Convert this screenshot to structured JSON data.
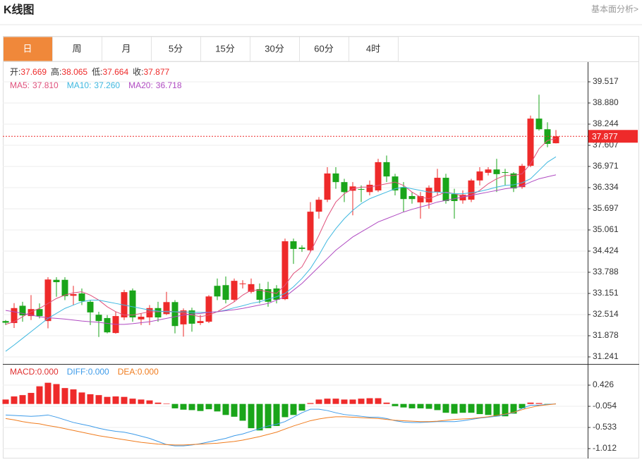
{
  "header": {
    "title": "K线图",
    "link": "基本面分析>"
  },
  "tabs": [
    "日",
    "周",
    "月",
    "5分",
    "15分",
    "30分",
    "60分",
    "4时"
  ],
  "active_tab": 0,
  "chart_data": [
    {
      "type": "candlestick",
      "up_color": "#ee2a2a",
      "down_color": "#1aa51a",
      "grid": true,
      "info_labels": [
        "开:",
        "高:",
        "低:",
        "收:"
      ],
      "open": [
        32.32,
        32.26,
        32.78,
        32.47,
        32.68,
        32.32,
        33.56,
        33.56,
        33.08,
        33.15,
        32.9,
        32.51,
        32.41,
        31.96,
        32.43,
        33.24,
        32.37,
        32.43,
        32.71,
        32.53,
        32.89,
        32.22,
        32.64,
        32.26,
        32.3,
        33.38,
        33.4,
        32.96,
        33.43,
        33.2,
        33.28,
        33.28,
        33.3,
        32.98,
        34.72,
        34.53,
        34.45,
        35.61,
        35.97,
        36.76,
        36.5,
        36.24,
        36.29,
        36.2,
        36.25,
        37.1,
        36.67,
        36.35,
        36.08,
        35.89,
        35.89,
        36.2,
        36.63,
        36.14,
        35.95,
        35.97,
        36.55,
        36.78,
        36.88,
        36.8,
        36.76,
        36.35,
        36.99,
        38.41,
        38.09,
        37.669
      ],
      "high": [
        32.35,
        32.86,
        32.9,
        33.1,
        32.85,
        33.64,
        33.64,
        33.64,
        33.38,
        33.3,
        32.95,
        32.6,
        32.5,
        32.6,
        33.26,
        33.3,
        32.55,
        32.8,
        32.9,
        33.2,
        32.95,
        32.7,
        32.72,
        32.5,
        33.1,
        33.6,
        33.66,
        33.6,
        33.55,
        33.6,
        33.45,
        33.5,
        33.4,
        34.8,
        34.8,
        34.6,
        35.9,
        36.05,
        36.95,
        36.95,
        36.6,
        36.5,
        36.4,
        36.55,
        37.2,
        37.3,
        36.75,
        36.5,
        36.2,
        36.2,
        36.4,
        36.9,
        36.75,
        36.3,
        36.25,
        36.6,
        36.95,
        36.95,
        37.2,
        36.9,
        36.8,
        37.05,
        38.5,
        39.13,
        38.3,
        38.065
      ],
      "low": [
        32.2,
        32.11,
        32.3,
        32.35,
        32.4,
        32.1,
        33.05,
        32.95,
        32.8,
        32.8,
        32.2,
        31.84,
        31.95,
        31.94,
        32.35,
        32.3,
        32.2,
        32.2,
        32.3,
        32.5,
        31.95,
        31.85,
        32.0,
        32.2,
        32.26,
        32.95,
        32.85,
        32.9,
        33.3,
        33.15,
        32.85,
        32.75,
        32.85,
        32.95,
        34.04,
        34.4,
        34.4,
        35.4,
        35.9,
        36.3,
        35.9,
        35.5,
        35.9,
        36.1,
        36.2,
        36.5,
        36.1,
        35.6,
        35.85,
        35.4,
        35.7,
        36.1,
        35.85,
        35.4,
        35.85,
        35.9,
        36.4,
        36.7,
        36.2,
        36.4,
        36.2,
        36.3,
        36.95,
        38.05,
        37.55,
        37.664
      ],
      "close": [
        32.27,
        32.71,
        32.49,
        32.68,
        32.47,
        33.57,
        33.49,
        33.07,
        33.13,
        32.92,
        32.58,
        32.32,
        31.98,
        32.47,
        33.19,
        32.43,
        32.45,
        32.71,
        32.43,
        32.89,
        32.17,
        32.64,
        32.24,
        32.32,
        33.06,
        33.06,
        32.96,
        33.53,
        33.45,
        33.43,
        32.96,
        32.9,
        32.96,
        34.72,
        34.49,
        34.49,
        35.61,
        35.97,
        36.76,
        36.5,
        36.2,
        36.37,
        36.28,
        36.42,
        37.1,
        36.67,
        36.25,
        35.99,
        35.99,
        36.08,
        36.33,
        36.63,
        35.93,
        35.93,
        36.12,
        36.55,
        36.82,
        36.88,
        36.74,
        36.78,
        36.31,
        36.99,
        38.41,
        38.09,
        37.65,
        37.877
      ],
      "series": [
        {
          "name": "MA5:",
          "label": "37.810",
          "color": "#e0517c",
          "values": [
            32.22,
            32.3,
            32.45,
            32.6,
            32.7,
            32.85,
            33.0,
            33.1,
            33.17,
            33.2,
            33.1,
            32.95,
            32.75,
            32.6,
            32.5,
            32.5,
            32.55,
            32.6,
            32.6,
            32.62,
            32.6,
            32.55,
            32.5,
            32.45,
            32.5,
            32.6,
            32.75,
            32.9,
            33.1,
            33.25,
            33.25,
            33.2,
            33.15,
            33.4,
            33.75,
            33.95,
            34.4,
            34.9,
            35.45,
            35.9,
            36.15,
            36.3,
            36.35,
            36.35,
            36.4,
            36.45,
            36.5,
            36.4,
            36.2,
            36.05,
            36.0,
            36.1,
            36.2,
            36.15,
            36.08,
            36.1,
            36.25,
            36.45,
            36.6,
            36.7,
            36.7,
            36.75,
            37.05,
            37.5,
            37.75,
            37.81
          ]
        },
        {
          "name": "MA10:",
          "label": "37.260",
          "color": "#3fb8e0",
          "values": [
            31.41,
            31.6,
            31.8,
            32.0,
            32.2,
            32.4,
            32.55,
            32.7,
            32.8,
            32.9,
            32.95,
            32.95,
            32.9,
            32.85,
            32.8,
            32.75,
            32.7,
            32.65,
            32.62,
            32.6,
            32.6,
            32.6,
            32.58,
            32.58,
            32.58,
            32.6,
            32.65,
            32.72,
            32.78,
            32.85,
            32.9,
            32.98,
            33.05,
            33.15,
            33.35,
            33.6,
            33.9,
            34.3,
            34.75,
            35.1,
            35.4,
            35.65,
            35.85,
            36.0,
            36.1,
            36.2,
            36.3,
            36.35,
            36.3,
            36.25,
            36.2,
            36.2,
            36.18,
            36.15,
            36.15,
            36.18,
            36.22,
            36.28,
            36.35,
            36.4,
            36.42,
            36.48,
            36.6,
            36.85,
            37.1,
            37.26
          ]
        },
        {
          "name": "MA20:",
          "label": "36.718",
          "color": "#b04bc2",
          "values": [
            32.64,
            32.6,
            32.55,
            32.5,
            32.45,
            32.42,
            32.4,
            32.38,
            32.35,
            32.32,
            32.3,
            32.28,
            32.25,
            32.22,
            32.22,
            32.24,
            32.27,
            32.3,
            32.35,
            32.4,
            32.45,
            32.5,
            32.53,
            32.55,
            32.58,
            32.6,
            32.63,
            32.66,
            32.7,
            32.75,
            32.8,
            32.85,
            32.95,
            33.05,
            33.25,
            33.45,
            33.7,
            33.95,
            34.2,
            34.45,
            34.65,
            34.85,
            35.0,
            35.15,
            35.3,
            35.4,
            35.5,
            35.6,
            35.68,
            35.75,
            35.82,
            35.9,
            35.95,
            36.0,
            36.05,
            36.1,
            36.15,
            36.2,
            36.25,
            36.3,
            36.33,
            36.38,
            36.5,
            36.6,
            36.66,
            36.718
          ]
        }
      ],
      "ylim": [
        31.029,
        40.111
      ],
      "yticks": [
        31.241,
        31.878,
        32.514,
        33.151,
        33.788,
        34.424,
        35.061,
        35.697,
        36.334,
        36.971,
        37.607,
        38.244,
        {
          "value": 38.88,
          "label": "38.880"
        },
        39.517
      ]
    },
    {
      "type": "macd",
      "up_color": "#ee2a2a",
      "down_color": "#1aa51a",
      "grid": true,
      "series": [
        {
          "name": "MACD:",
          "label": "0.000",
          "color": "#e03030",
          "values": [
            0.1,
            0.17,
            0.2,
            0.25,
            0.4,
            0.48,
            0.45,
            0.36,
            0.33,
            0.26,
            0.22,
            0.2,
            0.16,
            0.17,
            0.16,
            0.12,
            0.1,
            0.08,
            0.03,
            0.01,
            -0.1,
            -0.13,
            -0.14,
            -0.16,
            -0.12,
            -0.17,
            -0.25,
            -0.29,
            -0.38,
            -0.55,
            -0.6,
            -0.55,
            -0.5,
            -0.3,
            -0.25,
            -0.15,
            0.02,
            0.1,
            0.12,
            0.12,
            0.1,
            0.1,
            0.12,
            0.13,
            0.13,
            0.03,
            -0.05,
            -0.08,
            -0.1,
            -0.1,
            -0.11,
            -0.14,
            -0.2,
            -0.22,
            -0.2,
            -0.2,
            -0.23,
            -0.25,
            -0.28,
            -0.28,
            -0.22,
            -0.1,
            0.03,
            0.02,
            -0.01,
            0.0
          ]
        },
        {
          "name": "DIFF:",
          "label": "0.000",
          "color": "#3d9be9",
          "values": [
            -0.25,
            -0.26,
            -0.27,
            -0.28,
            -0.27,
            -0.25,
            -0.3,
            -0.36,
            -0.42,
            -0.46,
            -0.5,
            -0.55,
            -0.59,
            -0.62,
            -0.64,
            -0.68,
            -0.73,
            -0.78,
            -0.85,
            -0.92,
            -0.95,
            -0.95,
            -0.93,
            -0.9,
            -0.86,
            -0.82,
            -0.78,
            -0.72,
            -0.68,
            -0.62,
            -0.56,
            -0.5,
            -0.46,
            -0.4,
            -0.3,
            -0.2,
            -0.12,
            -0.12,
            -0.15,
            -0.2,
            -0.24,
            -0.26,
            -0.28,
            -0.3,
            -0.3,
            -0.33,
            -0.38,
            -0.41,
            -0.42,
            -0.42,
            -0.41,
            -0.4,
            -0.4,
            -0.4,
            -0.38,
            -0.35,
            -0.32,
            -0.3,
            -0.28,
            -0.24,
            -0.2,
            -0.1,
            -0.03,
            -0.03,
            -0.01,
            0.0
          ]
        },
        {
          "name": "DEA:",
          "label": "0.000",
          "color": "#f07c1e",
          "values": [
            -0.33,
            -0.36,
            -0.4,
            -0.43,
            -0.45,
            -0.49,
            -0.52,
            -0.56,
            -0.6,
            -0.64,
            -0.68,
            -0.72,
            -0.75,
            -0.78,
            -0.81,
            -0.84,
            -0.87,
            -0.89,
            -0.91,
            -0.92,
            -0.93,
            -0.93,
            -0.92,
            -0.91,
            -0.9,
            -0.89,
            -0.87,
            -0.85,
            -0.82,
            -0.78,
            -0.74,
            -0.69,
            -0.64,
            -0.57,
            -0.5,
            -0.44,
            -0.38,
            -0.34,
            -0.31,
            -0.29,
            -0.29,
            -0.3,
            -0.31,
            -0.32,
            -0.33,
            -0.35,
            -0.37,
            -0.38,
            -0.39,
            -0.4,
            -0.4,
            -0.39,
            -0.37,
            -0.35,
            -0.34,
            -0.33,
            -0.31,
            -0.29,
            -0.26,
            -0.23,
            -0.19,
            -0.13,
            -0.08,
            -0.04,
            -0.02,
            0.0
          ]
        }
      ],
      "ylim": [
        -1.204,
        0.874
      ],
      "yticks": [
        -1.012,
        -0.533,
        -0.054,
        0.426
      ]
    }
  ]
}
